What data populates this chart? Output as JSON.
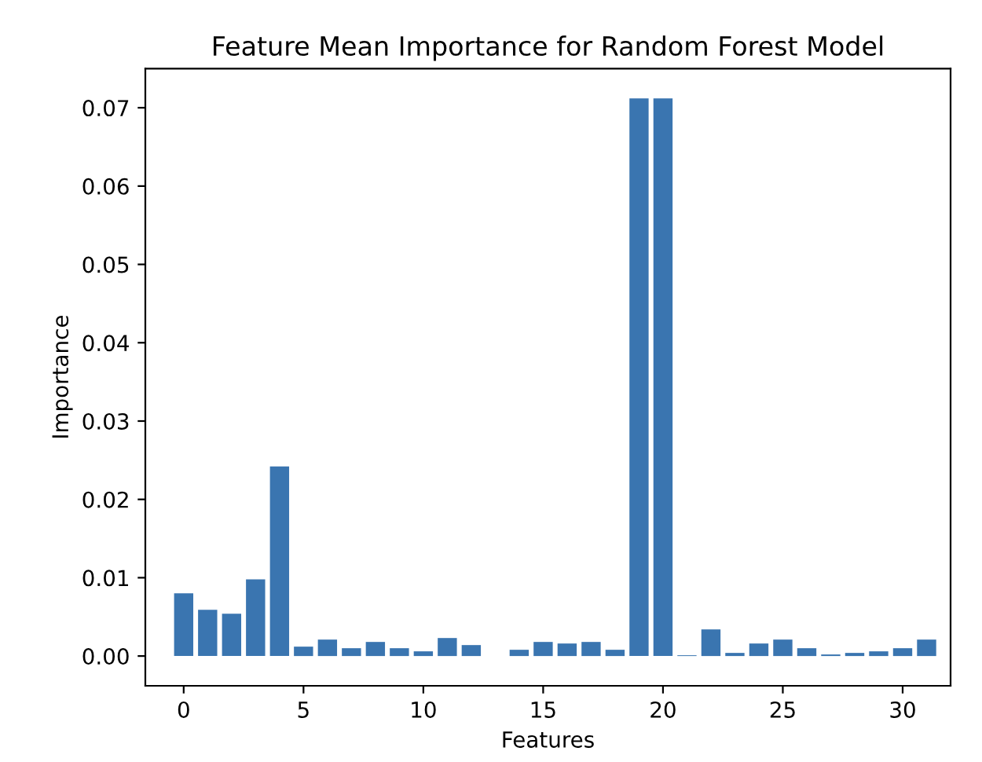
{
  "chart_data": {
    "type": "bar",
    "title": "Feature Mean Importance for Random Forest Model",
    "xlabel": "Features",
    "ylabel": "Importance",
    "x": [
      0,
      1,
      2,
      3,
      4,
      5,
      6,
      7,
      8,
      9,
      10,
      11,
      12,
      13,
      14,
      15,
      16,
      17,
      18,
      19,
      20,
      21,
      22,
      23,
      24,
      25,
      26,
      27,
      28,
      29,
      30,
      31
    ],
    "values": [
      0.008,
      0.0059,
      0.0054,
      0.0098,
      0.0242,
      0.0012,
      0.0021,
      0.001,
      0.0018,
      0.001,
      0.0006,
      0.0023,
      0.0014,
      null,
      0.0008,
      0.0018,
      0.0016,
      0.0018,
      0.0008,
      0.0712,
      0.0712,
      0.0001,
      0.0034,
      0.0004,
      0.0016,
      0.0021,
      0.001,
      0.0002,
      0.0004,
      0.0006,
      0.001,
      0.0021
    ],
    "color": "#3a75b0",
    "xlim": [
      -1.6,
      32.0
    ],
    "xticks": [
      0,
      5,
      10,
      15,
      20,
      25,
      30
    ],
    "ylim": [
      -0.0038,
      0.075
    ],
    "yticks": [
      {
        "value": 0,
        "label": "0.00"
      },
      {
        "value": 0.01,
        "label": "0.01"
      },
      {
        "value": 0.02,
        "label": "0.02"
      },
      {
        "value": 0.03,
        "label": "0.03"
      },
      {
        "value": 0.04,
        "label": "0.04"
      },
      {
        "value": 0.05,
        "label": "0.05"
      },
      {
        "value": 0.06,
        "label": "0.06"
      },
      {
        "value": 0.07,
        "label": "0.07"
      }
    ],
    "grid": false
  }
}
